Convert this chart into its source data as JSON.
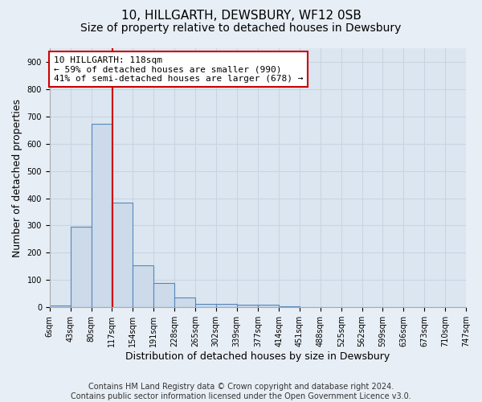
{
  "title": "10, HILLGARTH, DEWSBURY, WF12 0SB",
  "subtitle": "Size of property relative to detached houses in Dewsbury",
  "xlabel": "Distribution of detached houses by size in Dewsbury",
  "ylabel": "Number of detached properties",
  "footer_line1": "Contains HM Land Registry data © Crown copyright and database right 2024.",
  "footer_line2": "Contains public sector information licensed under the Open Government Licence v3.0.",
  "bar_edges": [
    6,
    43,
    80,
    117,
    154,
    191,
    228,
    265,
    302,
    339,
    377,
    414,
    451,
    488,
    525,
    562,
    599,
    636,
    673,
    710,
    747
  ],
  "bar_heights": [
    8,
    295,
    672,
    383,
    153,
    90,
    37,
    13,
    13,
    10,
    10,
    5,
    0,
    0,
    0,
    0,
    0,
    0,
    0,
    0
  ],
  "bar_color": "#ccdaea",
  "bar_edge_color": "#5588bb",
  "property_size": 118,
  "vline_color": "#cc0000",
  "annotation_line1": "10 HILLGARTH: 118sqm",
  "annotation_line2": "← 59% of detached houses are smaller (990)",
  "annotation_line3": "41% of semi-detached houses are larger (678) →",
  "annotation_box_color": "#ffffff",
  "annotation_box_edge": "#cc0000",
  "ylim": [
    0,
    950
  ],
  "yticks": [
    0,
    100,
    200,
    300,
    400,
    500,
    600,
    700,
    800,
    900
  ],
  "bg_color": "#e8eef5",
  "plot_bg_color": "#dce6f0",
  "grid_color": "#c8d4e0",
  "title_fontsize": 11,
  "subtitle_fontsize": 10,
  "label_fontsize": 9,
  "tick_fontsize": 7,
  "footer_fontsize": 7
}
